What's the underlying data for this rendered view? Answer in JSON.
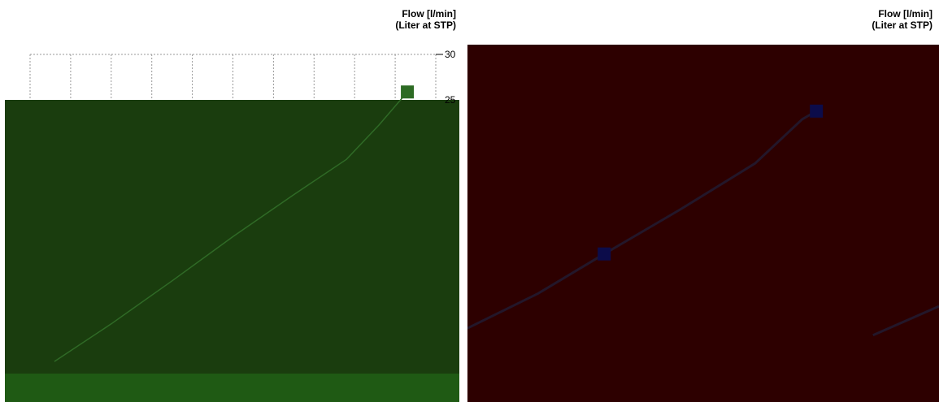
{
  "chart_data": [
    {
      "type": "line",
      "ylabel": "Flow [l/min]",
      "ylabel_sub": "(Liter at STP)",
      "y_ticks": [
        "30",
        "25"
      ],
      "grid": true,
      "plot_color": "#1a3d0e",
      "band_color": "#1f5a14",
      "line_color": "#2f6a26",
      "marker_color": "#2d6b24",
      "series": [
        {
          "values": [
            [
              0.6,
              2.2
            ],
            [
              2.0,
              5.6
            ],
            [
              3.5,
              9.5
            ],
            [
              5.0,
              13.5
            ],
            [
              6.5,
              17.3
            ],
            [
              7.8,
              20.5
            ],
            [
              8.6,
              23.6
            ],
            [
              9.3,
              26.6
            ]
          ]
        }
      ],
      "markers": [
        [
          9.3,
          26.6
        ]
      ]
    },
    {
      "type": "line",
      "ylabel": "Flow [l/min]",
      "ylabel_sub": "(Liter at STP)",
      "plot_color": "#2d0000",
      "line_color": "#23172a",
      "marker_color": "#0c0c4a",
      "series": [
        {
          "values": [
            [
              0.0,
              4.6
            ],
            [
              1.5,
              7.6
            ],
            [
              2.9,
              11.0
            ],
            [
              4.5,
              14.8
            ],
            [
              6.1,
              18.8
            ],
            [
              7.1,
              22.6
            ],
            [
              7.4,
              23.3
            ]
          ]
        },
        {
          "values": [
            [
              8.6,
              4.0
            ],
            [
              10.0,
              6.5
            ]
          ]
        }
      ],
      "markers": [
        [
          2.9,
          11.0
        ],
        [
          7.4,
          23.3
        ]
      ]
    }
  ]
}
